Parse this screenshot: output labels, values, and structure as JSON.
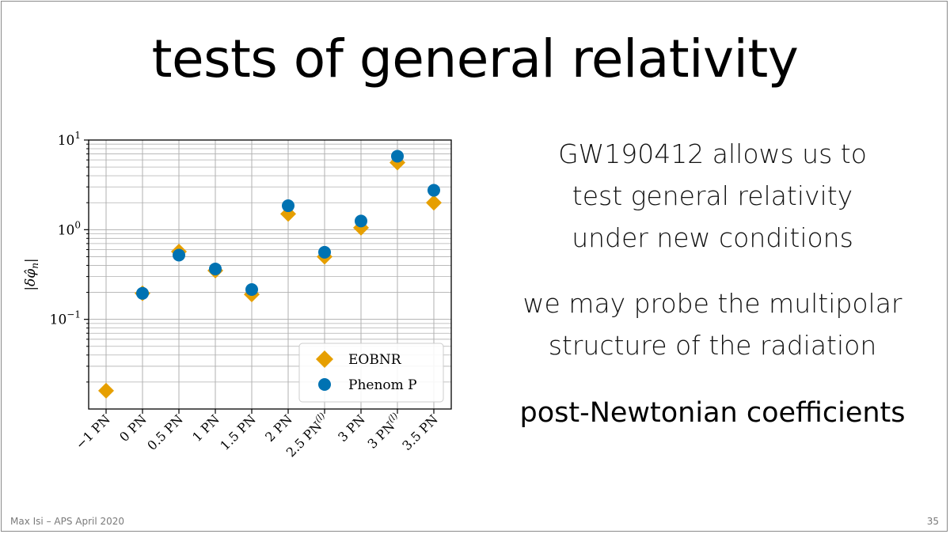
{
  "slide": {
    "title": "tests of general relativity",
    "paragraphs": [
      [
        "GW190412 allows us to",
        "test general relativity",
        "under new conditions"
      ],
      [
        "we may probe the multipolar",
        "structure of the radiation"
      ],
      [
        "post-Newtonian coefficients"
      ]
    ],
    "footer_left": "Max Isi – APS April 2020",
    "page_number": "35"
  },
  "colors": {
    "eobnr": "#E69F00",
    "phenom": "#0072B2",
    "grid": "#b0b0b0"
  },
  "chart_data": {
    "type": "scatter",
    "yscale": "log",
    "ylim": [
      0.01,
      10
    ],
    "yticks": [
      {
        "base": "10",
        "exp": "1",
        "value": 10
      },
      {
        "base": "10",
        "exp": "0",
        "value": 1
      },
      {
        "base": "10",
        "exp": "−1",
        "value": 0.1
      }
    ],
    "ylabel": "|δφ̂",
    "ylabel_sub": "n",
    "ylabel_close": "|",
    "categories": [
      "−1 PN",
      "0 PN",
      "0.5 PN",
      "1 PN",
      "1.5 PN",
      "2 PN",
      "2.5 PN(l)",
      "3 PN",
      "3 PN(l)",
      "3.5 PN"
    ],
    "series": [
      {
        "name": "EOBNR",
        "marker": "diamond",
        "values": [
          0.016,
          0.195,
          0.57,
          0.35,
          0.19,
          1.5,
          0.5,
          1.05,
          5.6,
          2.0
        ]
      },
      {
        "name": "Phenom P",
        "marker": "circle",
        "values": [
          null,
          0.195,
          0.52,
          0.365,
          0.215,
          1.85,
          0.56,
          1.25,
          6.6,
          2.75
        ]
      }
    ],
    "legend": "bottom-right",
    "grid": true
  }
}
